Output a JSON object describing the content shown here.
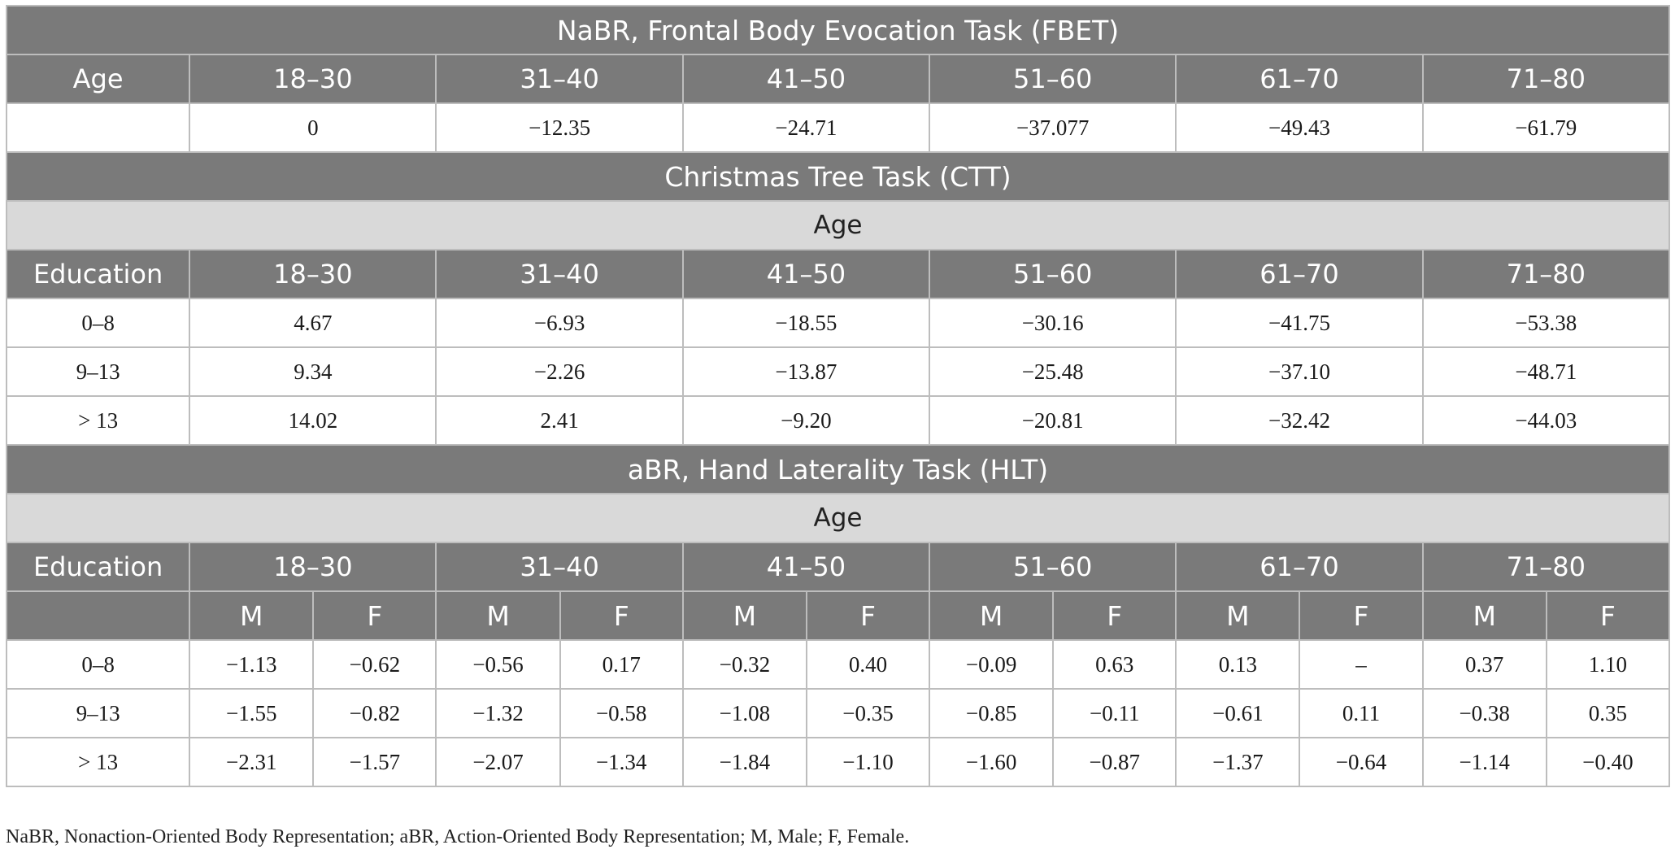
{
  "fbet": {
    "title": "NaBR, Frontal Body Evocation Task (FBET)",
    "age_label": "Age",
    "age_groups": [
      "18–30",
      "31–40",
      "41–50",
      "51–60",
      "61–70",
      "71–80"
    ],
    "row_label": "",
    "values": [
      "0",
      "−12.35",
      "−24.71",
      "−37.077",
      "−49.43",
      "−61.79"
    ]
  },
  "ctt": {
    "title": "Christmas Tree Task (CTT)",
    "band_label": "Age",
    "education_label": "Education",
    "age_groups": [
      "18–30",
      "31–40",
      "41–50",
      "51–60",
      "61–70",
      "71–80"
    ],
    "rows": [
      {
        "education": "0–8",
        "values": [
          "4.67",
          "−6.93",
          "−18.55",
          "−30.16",
          "−41.75",
          "−53.38"
        ]
      },
      {
        "education": "9–13",
        "values": [
          "9.34",
          "−2.26",
          "−13.87",
          "−25.48",
          "−37.10",
          "−48.71"
        ]
      },
      {
        "education": "> 13",
        "values": [
          "14.02",
          "2.41",
          "−9.20",
          "−20.81",
          "−32.42",
          "−44.03"
        ]
      }
    ]
  },
  "hlt": {
    "title": "aBR, Hand Laterality Task (HLT)",
    "band_label": "Age",
    "education_label": "Education",
    "age_groups": [
      "18–30",
      "31–40",
      "41–50",
      "51–60",
      "61–70",
      "71–80"
    ],
    "sex_labels": [
      "M",
      "F"
    ],
    "rows": [
      {
        "education": "0–8",
        "values": [
          "−1.13",
          "−0.62",
          "−0.56",
          "0.17",
          "−0.32",
          "0.40",
          "−0.09",
          "0.63",
          "0.13",
          "–",
          "0.37",
          "1.10"
        ]
      },
      {
        "education": "9–13",
        "values": [
          "−1.55",
          "−0.82",
          "−1.32",
          "−0.58",
          "−1.08",
          "−0.35",
          "−0.85",
          "−0.11",
          "−0.61",
          "0.11",
          "−0.38",
          "0.35"
        ]
      },
      {
        "education": "> 13",
        "values": [
          "−2.31",
          "−1.57",
          "−2.07",
          "−1.34",
          "−1.84",
          "−1.10",
          "−1.60",
          "−0.87",
          "−1.37",
          "−0.64",
          "−1.14",
          "−0.40"
        ]
      }
    ]
  },
  "footnote": "NaBR, Nonaction-Oriented Body Representation; aBR, Action-Oriented Body Representation; M, Male; F, Female.",
  "colors": {
    "header_bg": "#7a7a7a",
    "band_bg": "#d9d9d9",
    "grid": "#bdbdbd"
  }
}
